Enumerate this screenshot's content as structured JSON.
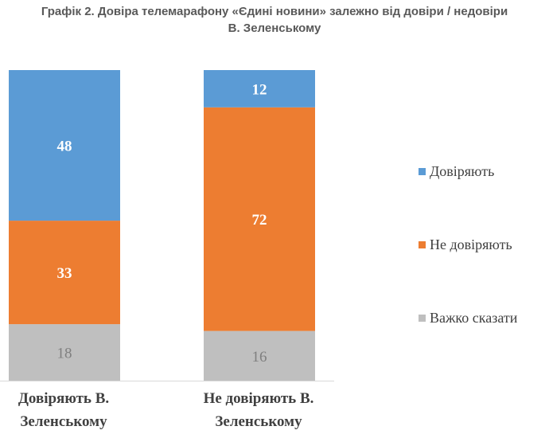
{
  "title_line1": "Графік 2. Довіра телемарафону «Єдині новини» залежно від довіри / недовіри",
  "title_line2": "В. Зеленському",
  "chart_data": {
    "type": "bar",
    "stacked": true,
    "categories": [
      [
        "Довіряють В.",
        "Зеленському"
      ],
      [
        "Не довіряють В.",
        "Зеленському"
      ]
    ],
    "series": [
      {
        "name": "Довіряють",
        "values": [
          48,
          12
        ],
        "color": "#5B9BD5",
        "label_color": "#ffffff"
      },
      {
        "name": "Не довіряють",
        "values": [
          33,
          72
        ],
        "color": "#ED7D31",
        "label_color": "#ffffff"
      },
      {
        "name": "Важко сказати",
        "values": [
          18,
          16
        ],
        "color": "#BFBFBF",
        "label_color": "#7f7f7f"
      }
    ],
    "legend_position": "right",
    "grid": false
  }
}
